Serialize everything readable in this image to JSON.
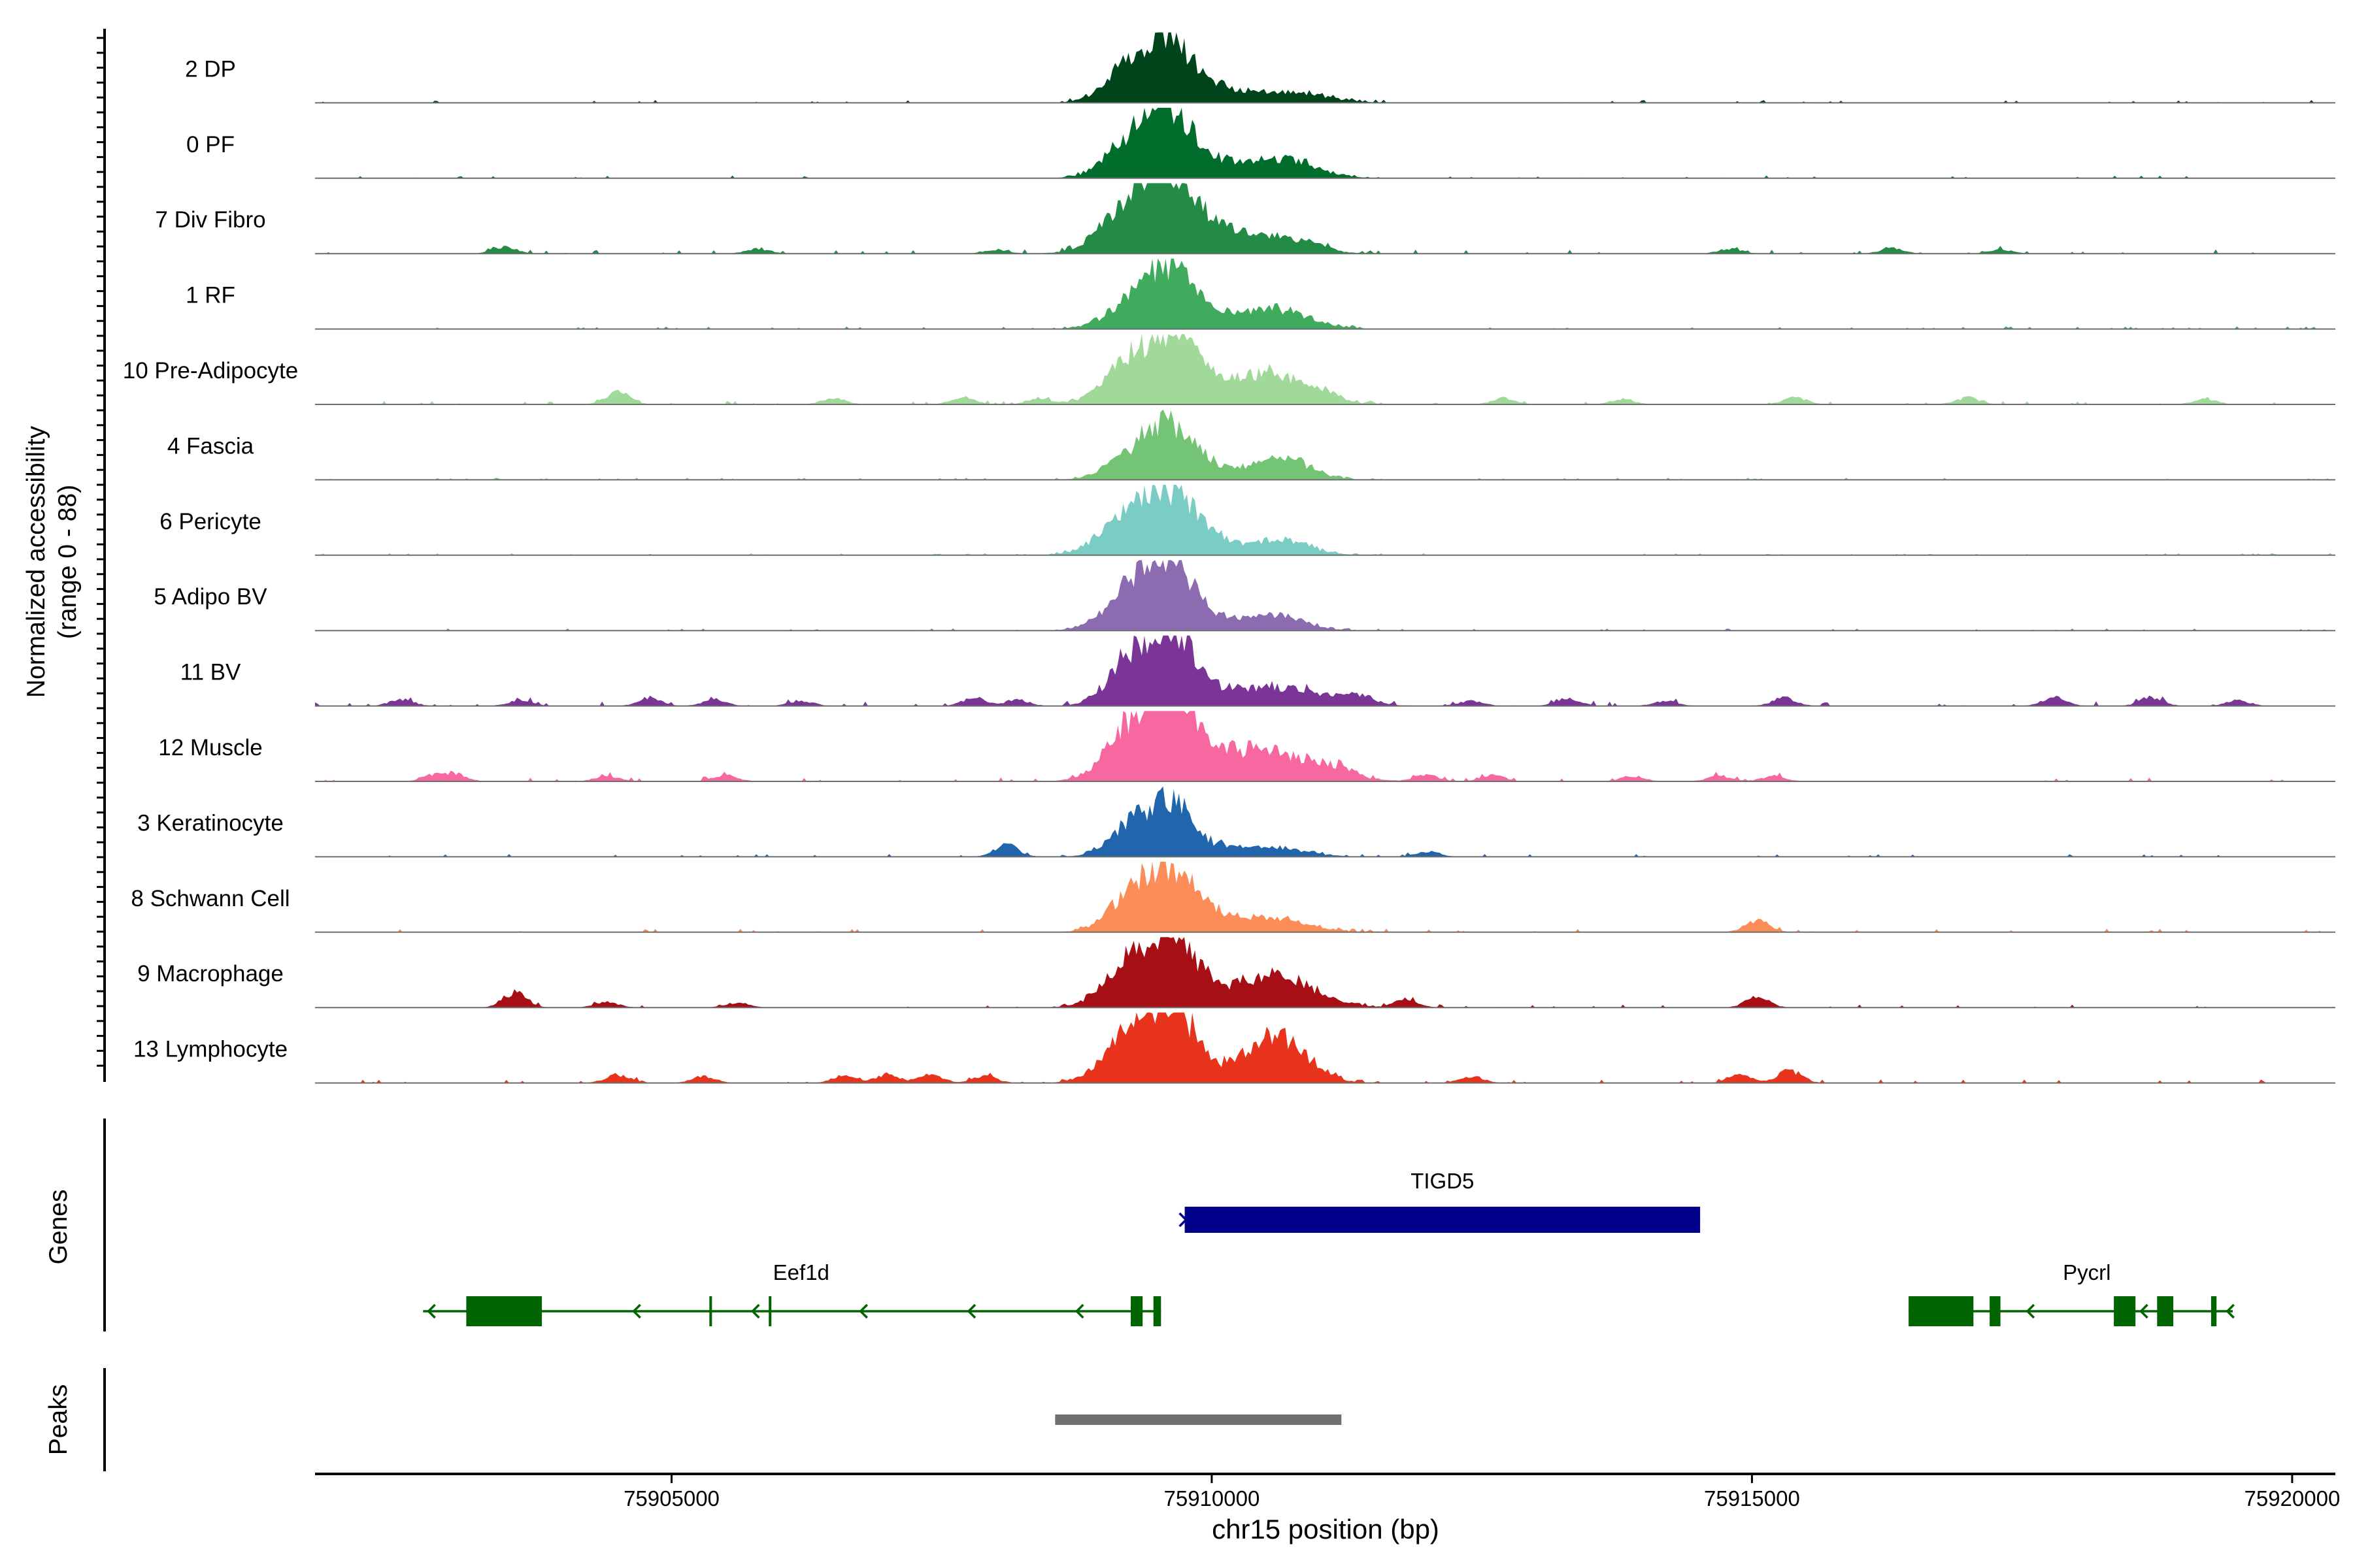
{
  "chart_data": {
    "type": "area",
    "title": "",
    "ylabel_line1": "Normalized accessibility",
    "ylabel_line2": "(range 0 - 88)",
    "xlabel": "chr15 position (bp)",
    "xlim": [
      75901700,
      75920400
    ],
    "x_ticks": [
      75905000,
      75910000,
      75915000,
      75920000
    ],
    "x_tick_labels": [
      "75905000",
      "75910000",
      "75915000",
      "75920000"
    ],
    "y_range": [
      0,
      88
    ],
    "tracks": [
      {
        "name": "2 DP",
        "color": "#00441b",
        "peaks": [
          [
            75909320,
            0.6,
            250
          ],
          [
            75909640,
            0.62,
            200
          ],
          [
            75910000,
            0.18,
            250
          ],
          [
            75910700,
            0.15,
            350
          ]
        ],
        "noise": 0.04,
        "islands": []
      },
      {
        "name": "0 PF",
        "color": "#006d2c",
        "peaks": [
          [
            75909320,
            0.62,
            250
          ],
          [
            75909640,
            0.65,
            200
          ],
          [
            75910000,
            0.2,
            250
          ],
          [
            75910650,
            0.28,
            300
          ]
        ],
        "noise": 0.04,
        "islands": []
      },
      {
        "name": "7 Div Fibro",
        "color": "#238b45",
        "peaks": [
          [
            75909300,
            0.72,
            280
          ],
          [
            75909650,
            0.82,
            230
          ],
          [
            75910100,
            0.25,
            350
          ],
          [
            75910650,
            0.15,
            300
          ]
        ],
        "noise": 0.06,
        "islands": [
          [
            75903450,
            0.1
          ],
          [
            75905800,
            0.07
          ],
          [
            75908000,
            0.06
          ],
          [
            75910950,
            0.07
          ],
          [
            75914800,
            0.07
          ],
          [
            75916300,
            0.08
          ],
          [
            75917300,
            0.06
          ]
        ]
      },
      {
        "name": "1 RF",
        "color": "#41ab5d",
        "peaks": [
          [
            75909350,
            0.52,
            250
          ],
          [
            75909650,
            0.58,
            200
          ],
          [
            75910000,
            0.16,
            250
          ],
          [
            75910600,
            0.28,
            300
          ]
        ],
        "noise": 0.04,
        "islands": []
      },
      {
        "name": "10 Pre-Adipocyte",
        "color": "#a1d99b",
        "peaks": [
          [
            75909250,
            0.65,
            230
          ],
          [
            75909650,
            0.7,
            220
          ],
          [
            75910000,
            0.25,
            300
          ],
          [
            75910600,
            0.4,
            300
          ]
        ],
        "noise": 0.05,
        "islands": [
          [
            75904500,
            0.18
          ],
          [
            75906500,
            0.09
          ],
          [
            75907700,
            0.1
          ],
          [
            75908400,
            0.09
          ],
          [
            75911100,
            0.1
          ],
          [
            75912700,
            0.09
          ],
          [
            75913800,
            0.08
          ],
          [
            75915400,
            0.1
          ],
          [
            75917000,
            0.1
          ],
          [
            75919200,
            0.08
          ]
        ]
      },
      {
        "name": "4 Fascia",
        "color": "#74c476",
        "peaks": [
          [
            75909350,
            0.45,
            250
          ],
          [
            75909650,
            0.55,
            200
          ],
          [
            75910000,
            0.15,
            250
          ],
          [
            75910650,
            0.32,
            250
          ]
        ],
        "noise": 0.03,
        "islands": []
      },
      {
        "name": "6 Pericyte",
        "color": "#7bccc4",
        "peaks": [
          [
            75909350,
            0.68,
            300
          ],
          [
            75909700,
            0.48,
            220
          ],
          [
            75910000,
            0.15,
            250
          ],
          [
            75910650,
            0.22,
            250
          ]
        ],
        "noise": 0.03,
        "islands": []
      },
      {
        "name": "5 Adipo BV",
        "color": "#8c6bb1",
        "peaks": [
          [
            75909320,
            0.72,
            250
          ],
          [
            75909650,
            0.68,
            200
          ],
          [
            75910000,
            0.14,
            250
          ],
          [
            75910600,
            0.22,
            250
          ]
        ],
        "noise": 0.03,
        "islands": []
      },
      {
        "name": "11 BV",
        "color": "#7a3596",
        "peaks": [
          [
            75909300,
            0.8,
            220
          ],
          [
            75909700,
            0.78,
            180
          ],
          [
            75910200,
            0.18,
            450
          ],
          [
            75910800,
            0.16,
            400
          ]
        ],
        "noise": 0.07,
        "islands": [
          [
            75902500,
            0.1
          ],
          [
            75903600,
            0.08
          ],
          [
            75904800,
            0.12
          ],
          [
            75905400,
            0.09
          ],
          [
            75906200,
            0.08
          ],
          [
            75907800,
            0.12
          ],
          [
            75908200,
            0.09
          ],
          [
            75911400,
            0.1
          ],
          [
            75912400,
            0.08
          ],
          [
            75913300,
            0.12
          ],
          [
            75914200,
            0.07
          ],
          [
            75915300,
            0.12
          ],
          [
            75917800,
            0.13
          ],
          [
            75918700,
            0.12
          ],
          [
            75919500,
            0.08
          ]
        ]
      },
      {
        "name": "12 Muscle",
        "color": "#f768a1",
        "peaks": [
          [
            75909300,
            0.82,
            250
          ],
          [
            75909700,
            0.8,
            220
          ],
          [
            75910150,
            0.3,
            450
          ],
          [
            75910700,
            0.26,
            400
          ]
        ],
        "noise": 0.06,
        "islands": [
          [
            75902800,
            0.09
          ],
          [
            75903000,
            0.1
          ],
          [
            75904400,
            0.08
          ],
          [
            75905500,
            0.09
          ],
          [
            75911200,
            0.09
          ],
          [
            75912000,
            0.09
          ],
          [
            75912600,
            0.09
          ],
          [
            75913900,
            0.08
          ],
          [
            75914700,
            0.08
          ],
          [
            75915200,
            0.08
          ]
        ]
      },
      {
        "name": "3 Keratinocyte",
        "color": "#2166ac",
        "peaks": [
          [
            75909300,
            0.5,
            220
          ],
          [
            75909650,
            0.62,
            180
          ],
          [
            75910050,
            0.12,
            300
          ],
          [
            75910600,
            0.1,
            300
          ]
        ],
        "noise": 0.04,
        "islands": [
          [
            75908100,
            0.18
          ],
          [
            75912000,
            0.08
          ]
        ]
      },
      {
        "name": "8 Schwann Cell",
        "color": "#fc8d59",
        "peaks": [
          [
            75909300,
            0.55,
            230
          ],
          [
            75909650,
            0.68,
            220
          ],
          [
            75910050,
            0.18,
            300
          ],
          [
            75910600,
            0.15,
            300
          ]
        ],
        "noise": 0.05,
        "islands": [
          [
            75915050,
            0.18
          ]
        ]
      },
      {
        "name": "9 Macrophage",
        "color": "#a50f15",
        "peaks": [
          [
            75909300,
            0.72,
            250
          ],
          [
            75909680,
            0.68,
            200
          ],
          [
            75910200,
            0.25,
            450
          ],
          [
            75910700,
            0.3,
            300
          ]
        ],
        "noise": 0.05,
        "islands": [
          [
            75903550,
            0.22
          ],
          [
            75904400,
            0.08
          ],
          [
            75905600,
            0.07
          ],
          [
            75911800,
            0.12
          ],
          [
            75915050,
            0.15
          ]
        ]
      },
      {
        "name": "13 Lymphocyte",
        "color": "#e8341c",
        "peaks": [
          [
            75909300,
            0.82,
            250
          ],
          [
            75909680,
            0.88,
            200
          ],
          [
            75910400,
            0.35,
            250
          ],
          [
            75910700,
            0.45,
            250
          ]
        ],
        "noise": 0.05,
        "islands": [
          [
            75904500,
            0.12
          ],
          [
            75905300,
            0.1
          ],
          [
            75906600,
            0.12
          ],
          [
            75907000,
            0.12
          ],
          [
            75907400,
            0.12
          ],
          [
            75907900,
            0.1
          ],
          [
            75912400,
            0.1
          ],
          [
            75914900,
            0.12
          ],
          [
            75915350,
            0.18
          ]
        ]
      }
    ],
    "genes": [
      {
        "name": "TIGD5",
        "strand": "+",
        "color": "#00008b",
        "start": 75909750,
        "end": 75914520,
        "exons": [
          [
            75909750,
            75914520
          ]
        ],
        "arrows": []
      },
      {
        "name": "Eef1d",
        "strand": "-",
        "color": "#006400",
        "start": 75902700,
        "end": 75909530,
        "exons": [
          [
            75903100,
            75903800
          ],
          [
            75905350,
            75905360
          ],
          [
            75905900,
            75905910
          ],
          [
            75909250,
            75909360
          ],
          [
            75909460,
            75909530
          ]
        ],
        "arrows": [
          75902750,
          75904650,
          75905750,
          75906750,
          75907750,
          75908750
        ]
      },
      {
        "name": "Pycrl",
        "strand": "-",
        "color": "#006400",
        "start": 75916450,
        "end": 75919450,
        "exons": [
          [
            75916450,
            75917050
          ],
          [
            75917200,
            75917300
          ],
          [
            75918350,
            75918550
          ],
          [
            75918750,
            75918900
          ],
          [
            75919250,
            75919300
          ]
        ],
        "arrows": [
          75917550,
          75918600,
          75919400
        ]
      }
    ],
    "peaks_region": [
      [
        75908550,
        75911200
      ]
    ],
    "peak_color": "#707070",
    "panel_labels": {
      "genes": "Genes",
      "peaks": "Peaks"
    }
  }
}
